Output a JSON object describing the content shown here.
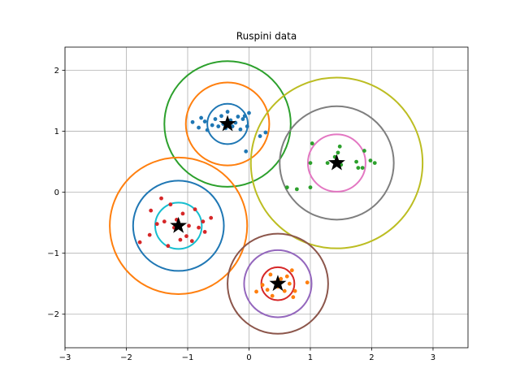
{
  "chart_data": {
    "type": "scatter",
    "title": "Ruspini data",
    "xlabel": "",
    "ylabel": "",
    "xlim": [
      -3,
      3.57
    ],
    "ylim": [
      -2.55,
      2.38
    ],
    "xticks": [
      -3,
      -2,
      -1,
      0,
      1,
      2,
      3
    ],
    "yticks": [
      -2,
      -1,
      0,
      1,
      2
    ],
    "x_tick_labels": [
      "−3",
      "−2",
      "−1",
      "0",
      "1",
      "2",
      "3"
    ],
    "y_tick_labels": [
      "−2",
      "−1",
      "0",
      "1",
      "2"
    ],
    "grid": true,
    "series": [
      {
        "color": "#1f77b4",
        "points": [
          [
            -0.92,
            1.15
          ],
          [
            -0.82,
            1.06
          ],
          [
            -0.78,
            1.22
          ],
          [
            -0.72,
            1.16
          ],
          [
            -0.68,
            1.02
          ],
          [
            -0.6,
            1.1
          ],
          [
            -0.55,
            1.2
          ],
          [
            -0.5,
            1.08
          ],
          [
            -0.45,
            1.25
          ],
          [
            -0.42,
            1.12
          ],
          [
            -0.38,
            1.05
          ],
          [
            -0.35,
            1.32
          ],
          [
            -0.3,
            1.18
          ],
          [
            -0.27,
            1.08
          ],
          [
            -0.22,
            1.14
          ],
          [
            -0.18,
            1.24
          ],
          [
            -0.14,
            1.03
          ],
          [
            -0.1,
            1.2
          ],
          [
            -0.07,
            1.25
          ],
          [
            0.0,
            1.3
          ],
          [
            -0.03,
            1.08
          ],
          [
            0.18,
            0.92
          ],
          [
            0.27,
            0.98
          ],
          [
            -0.05,
            0.67
          ]
        ]
      },
      {
        "color": "#2ca02c",
        "points": [
          [
            0.62,
            0.08
          ],
          [
            0.78,
            0.05
          ],
          [
            1.0,
            0.08
          ],
          [
            1.0,
            0.48
          ],
          [
            1.03,
            0.8
          ],
          [
            1.28,
            0.48
          ],
          [
            1.4,
            0.58
          ],
          [
            1.45,
            0.65
          ],
          [
            1.48,
            0.75
          ],
          [
            1.5,
            0.45
          ],
          [
            1.75,
            0.5
          ],
          [
            1.78,
            0.4
          ],
          [
            1.85,
            0.4
          ],
          [
            1.88,
            0.68
          ],
          [
            1.98,
            0.52
          ],
          [
            2.05,
            0.48
          ]
        ]
      },
      {
        "color": "#d62728",
        "points": [
          [
            -1.78,
            -0.82
          ],
          [
            -1.62,
            -0.7
          ],
          [
            -1.6,
            -0.3
          ],
          [
            -1.5,
            -0.52
          ],
          [
            -1.43,
            -0.1
          ],
          [
            -1.38,
            -0.48
          ],
          [
            -1.32,
            -0.88
          ],
          [
            -1.28,
            -0.2
          ],
          [
            -1.22,
            -0.58
          ],
          [
            -1.18,
            -0.45
          ],
          [
            -1.12,
            -0.78
          ],
          [
            -1.08,
            -0.35
          ],
          [
            -1.02,
            -0.72
          ],
          [
            -0.98,
            -0.55
          ],
          [
            -0.93,
            -0.8
          ],
          [
            -0.88,
            -0.28
          ],
          [
            -0.82,
            -0.58
          ],
          [
            -0.75,
            -0.48
          ],
          [
            -0.72,
            -0.65
          ],
          [
            -0.62,
            -0.42
          ]
        ]
      },
      {
        "color": "#ff7f0e",
        "points": [
          [
            0.12,
            -1.63
          ],
          [
            0.22,
            -1.52
          ],
          [
            0.3,
            -1.6
          ],
          [
            0.35,
            -1.35
          ],
          [
            0.38,
            -1.7
          ],
          [
            0.42,
            -1.48
          ],
          [
            0.47,
            -1.55
          ],
          [
            0.52,
            -1.42
          ],
          [
            0.58,
            -1.62
          ],
          [
            0.62,
            -1.38
          ],
          [
            0.66,
            -1.5
          ],
          [
            0.7,
            -1.28
          ],
          [
            0.72,
            -1.72
          ],
          [
            0.75,
            -1.62
          ],
          [
            0.95,
            -1.48
          ]
        ]
      }
    ],
    "centers": [
      [
        -0.35,
        1.12
      ],
      [
        1.43,
        0.48
      ],
      [
        -1.15,
        -0.55
      ],
      [
        0.47,
        -1.5
      ]
    ],
    "center_color": "#000000",
    "circles": [
      {
        "cx": -0.35,
        "cy": 1.12,
        "r": 0.33,
        "color": "#1f77b4"
      },
      {
        "cx": -0.35,
        "cy": 1.12,
        "r": 0.68,
        "color": "#ff7f0e"
      },
      {
        "cx": -0.35,
        "cy": 1.12,
        "r": 1.03,
        "color": "#2ca02c"
      },
      {
        "cx": 1.43,
        "cy": 0.48,
        "r": 0.47,
        "color": "#e377c2"
      },
      {
        "cx": 1.43,
        "cy": 0.48,
        "r": 0.93,
        "color": "#7f7f7f"
      },
      {
        "cx": 1.43,
        "cy": 0.48,
        "r": 1.4,
        "color": "#bcbd22"
      },
      {
        "cx": -1.15,
        "cy": -0.55,
        "r": 0.38,
        "color": "#17becf"
      },
      {
        "cx": -1.15,
        "cy": -0.55,
        "r": 0.74,
        "color": "#1f77b4"
      },
      {
        "cx": -1.15,
        "cy": -0.55,
        "r": 1.12,
        "color": "#ff7f0e"
      },
      {
        "cx": 0.47,
        "cy": -1.5,
        "r": 0.27,
        "color": "#d62728"
      },
      {
        "cx": 0.47,
        "cy": -1.5,
        "r": 0.55,
        "color": "#9467bd"
      },
      {
        "cx": 0.47,
        "cy": -1.5,
        "r": 0.82,
        "color": "#8c564b"
      }
    ]
  }
}
